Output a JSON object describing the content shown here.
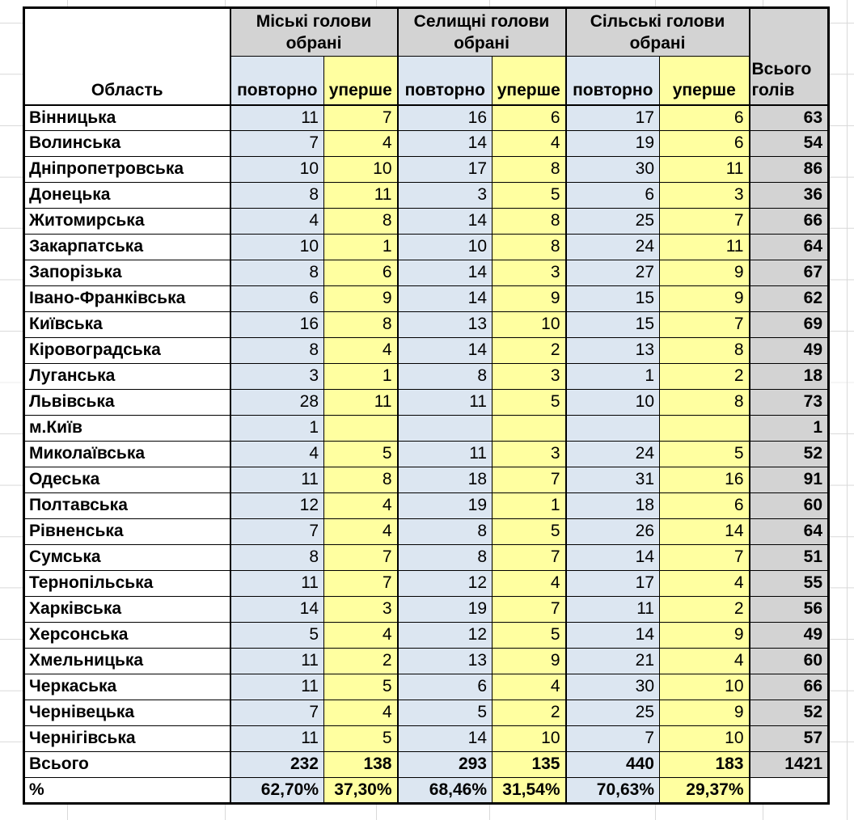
{
  "colors": {
    "header_gray": "#d3d3d3",
    "repeat_blue": "#dce6f1",
    "first_yellow": "#ffffa0",
    "border": "#000000",
    "grid": "#d9d9d9"
  },
  "table": {
    "corner_header": "Область",
    "groups": [
      {
        "line1": "Міські голови",
        "line2": "обрані",
        "subheaders": [
          "повторно",
          "уперше"
        ]
      },
      {
        "line1": "Селищні голови",
        "line2": "обрані",
        "subheaders": [
          "повторно",
          "уперше"
        ]
      },
      {
        "line1": "Сільські голови",
        "line2": "обрані",
        "subheaders": [
          "повторно",
          "уперше"
        ]
      }
    ],
    "grand_total_header": {
      "line1": "Всього",
      "line2": "голів"
    },
    "rows": [
      {
        "region": "Вінницька",
        "values": [
          "11",
          "7",
          "16",
          "6",
          "17",
          "6"
        ],
        "total": "63"
      },
      {
        "region": "Волинська",
        "values": [
          "7",
          "4",
          "14",
          "4",
          "19",
          "6"
        ],
        "total": "54"
      },
      {
        "region": "Дніпропетровська",
        "values": [
          "10",
          "10",
          "17",
          "8",
          "30",
          "11"
        ],
        "total": "86"
      },
      {
        "region": "Донецька",
        "values": [
          "8",
          "11",
          "3",
          "5",
          "6",
          "3"
        ],
        "total": "36"
      },
      {
        "region": "Житомирська",
        "values": [
          "4",
          "8",
          "14",
          "8",
          "25",
          "7"
        ],
        "total": "66"
      },
      {
        "region": "Закарпатська",
        "values": [
          "10",
          "1",
          "10",
          "8",
          "24",
          "11"
        ],
        "total": "64"
      },
      {
        "region": "Запорізька",
        "values": [
          "8",
          "6",
          "14",
          "3",
          "27",
          "9"
        ],
        "total": "67"
      },
      {
        "region": "Івано-Франківська",
        "values": [
          "6",
          "9",
          "14",
          "9",
          "15",
          "9"
        ],
        "total": "62"
      },
      {
        "region": "Київська",
        "values": [
          "16",
          "8",
          "13",
          "10",
          "15",
          "7"
        ],
        "total": "69"
      },
      {
        "region": "Кіровоградська",
        "values": [
          "8",
          "4",
          "14",
          "2",
          "13",
          "8"
        ],
        "total": "49"
      },
      {
        "region": "Луганська",
        "values": [
          "3",
          "1",
          "8",
          "3",
          "1",
          "2"
        ],
        "total": "18"
      },
      {
        "region": "Львівська",
        "values": [
          "28",
          "11",
          "11",
          "5",
          "10",
          "8"
        ],
        "total": "73"
      },
      {
        "region": "м.Київ",
        "values": [
          "1",
          "",
          "",
          "",
          "",
          ""
        ],
        "total": "1"
      },
      {
        "region": "Миколаївська",
        "values": [
          "4",
          "5",
          "11",
          "3",
          "24",
          "5"
        ],
        "total": "52"
      },
      {
        "region": "Одеська",
        "values": [
          "11",
          "8",
          "18",
          "7",
          "31",
          "16"
        ],
        "total": "91"
      },
      {
        "region": "Полтавська",
        "values": [
          "12",
          "4",
          "19",
          "1",
          "18",
          "6"
        ],
        "total": "60"
      },
      {
        "region": "Рівненська",
        "values": [
          "7",
          "4",
          "8",
          "5",
          "26",
          "14"
        ],
        "total": "64"
      },
      {
        "region": "Сумська",
        "values": [
          "8",
          "7",
          "8",
          "7",
          "14",
          "7"
        ],
        "total": "51"
      },
      {
        "region": "Тернопільська",
        "values": [
          "11",
          "7",
          "12",
          "4",
          "17",
          "4"
        ],
        "total": "55"
      },
      {
        "region": "Харківська",
        "values": [
          "14",
          "3",
          "19",
          "7",
          "11",
          "2"
        ],
        "total": "56"
      },
      {
        "region": "Херсонська",
        "values": [
          "5",
          "4",
          "12",
          "5",
          "14",
          "9"
        ],
        "total": "49"
      },
      {
        "region": "Хмельницька",
        "values": [
          "11",
          "2",
          "13",
          "9",
          "21",
          "4"
        ],
        "total": "60"
      },
      {
        "region": "Черкаська",
        "values": [
          "11",
          "5",
          "6",
          "4",
          "30",
          "10"
        ],
        "total": "66"
      },
      {
        "region": "Чернівецька",
        "values": [
          "7",
          "4",
          "5",
          "2",
          "25",
          "9"
        ],
        "total": "52"
      },
      {
        "region": "Чернігівська",
        "values": [
          "11",
          "5",
          "14",
          "10",
          "7",
          "10"
        ],
        "total": "57"
      }
    ],
    "totals_row": {
      "label": "Всього",
      "values": [
        "232",
        "138",
        "293",
        "135",
        "440",
        "183"
      ],
      "total": "1421"
    },
    "percent_row": {
      "label": "%",
      "values": [
        "62,70%",
        "37,30%",
        "68,46%",
        "31,54%",
        "70,63%",
        "29,37%"
      ],
      "total": ""
    }
  }
}
